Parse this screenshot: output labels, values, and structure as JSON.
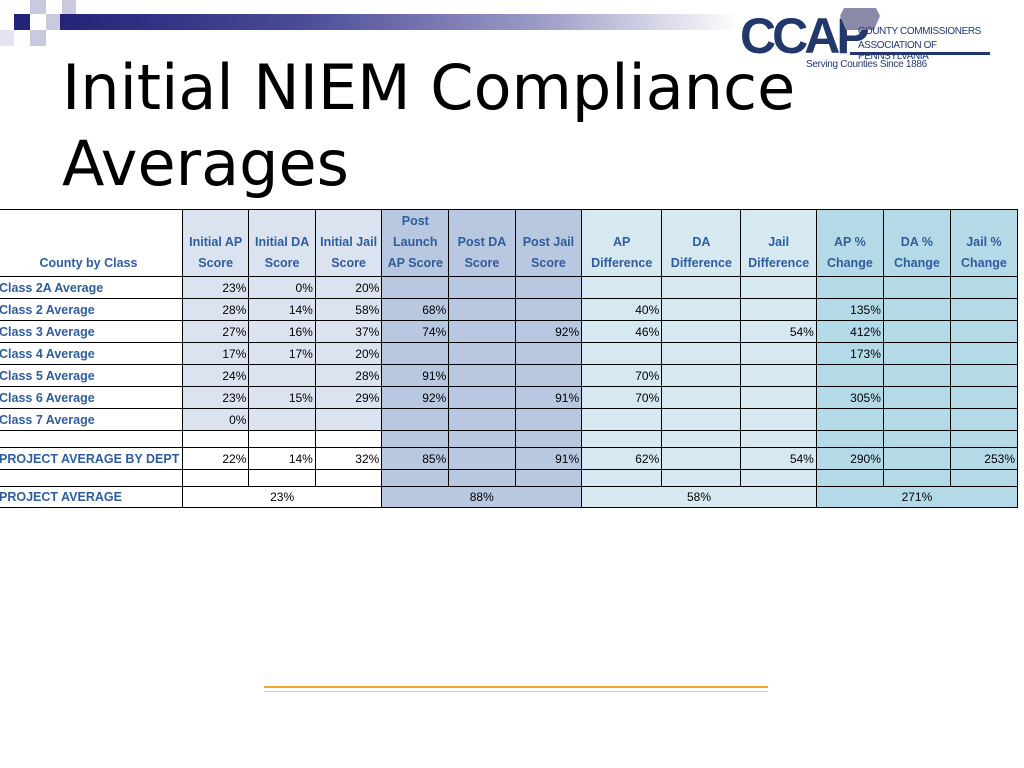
{
  "slide": {
    "title": "Initial NIEM Compliance Averages"
  },
  "logo": {
    "wordmark": "CCAP",
    "line1": "COUNTY COMMISSIONERS",
    "line2": "ASSOCIATION OF PENNSYLVANIA",
    "tagline": "Serving Counties Since 1886"
  },
  "colors": {
    "title_bar": "#23237a",
    "header_text": "#2f5d9b",
    "initial_fill": "#dbe3f0",
    "post_fill": "#b8c8e0",
    "difference_fill": "#d6e9f0",
    "change_fill": "#b4dae8",
    "accent_line": "#f0a830"
  },
  "table": {
    "headers": [
      "County by Class",
      "Initial AP Score",
      "Initial DA Score",
      "Initial Jail Score",
      "Post Launch AP Score",
      "Post DA Score",
      "Post Jail Score",
      "AP Difference",
      "DA Difference",
      "Jail Difference",
      "AP % Change",
      "DA % Change",
      "Jail % Change"
    ],
    "rows": [
      {
        "label": "Class 2A Average",
        "cells": [
          "23%",
          "0%",
          "20%",
          "",
          "",
          "",
          "",
          "",
          "",
          "",
          "",
          ""
        ]
      },
      {
        "label": "Class 2 Average",
        "cells": [
          "28%",
          "14%",
          "58%",
          "68%",
          "",
          "",
          "40%",
          "",
          "",
          "135%",
          "",
          ""
        ]
      },
      {
        "label": "Class 3 Average",
        "cells": [
          "27%",
          "16%",
          "37%",
          "74%",
          "",
          "92%",
          "46%",
          "",
          "54%",
          "412%",
          "",
          ""
        ]
      },
      {
        "label": "Class 4 Average",
        "cells": [
          "17%",
          "17%",
          "20%",
          "",
          "",
          "",
          "",
          "",
          "",
          "173%",
          "",
          ""
        ]
      },
      {
        "label": "Class 5 Average",
        "cells": [
          "24%",
          "",
          "28%",
          "91%",
          "",
          "",
          "70%",
          "",
          "",
          "",
          "",
          ""
        ]
      },
      {
        "label": "Class 6 Average",
        "cells": [
          "23%",
          "15%",
          "29%",
          "92%",
          "",
          "91%",
          "70%",
          "",
          "",
          "305%",
          "",
          ""
        ]
      },
      {
        "label": "Class 7 Average",
        "cells": [
          "0%",
          "",
          "",
          "",
          "",
          "",
          "",
          "",
          "",
          "",
          "",
          ""
        ]
      }
    ],
    "dept_row": {
      "label": "PROJECT AVERAGE BY DEPT",
      "cells": [
        "22%",
        "14%",
        "32%",
        "85%",
        "",
        "91%",
        "62%",
        "",
        "54%",
        "290%",
        "",
        "253%"
      ]
    },
    "project_row": {
      "label": "PROJECT AVERAGE",
      "initial": "23%",
      "post": "88%",
      "difference": "58%",
      "change": "271%"
    }
  }
}
